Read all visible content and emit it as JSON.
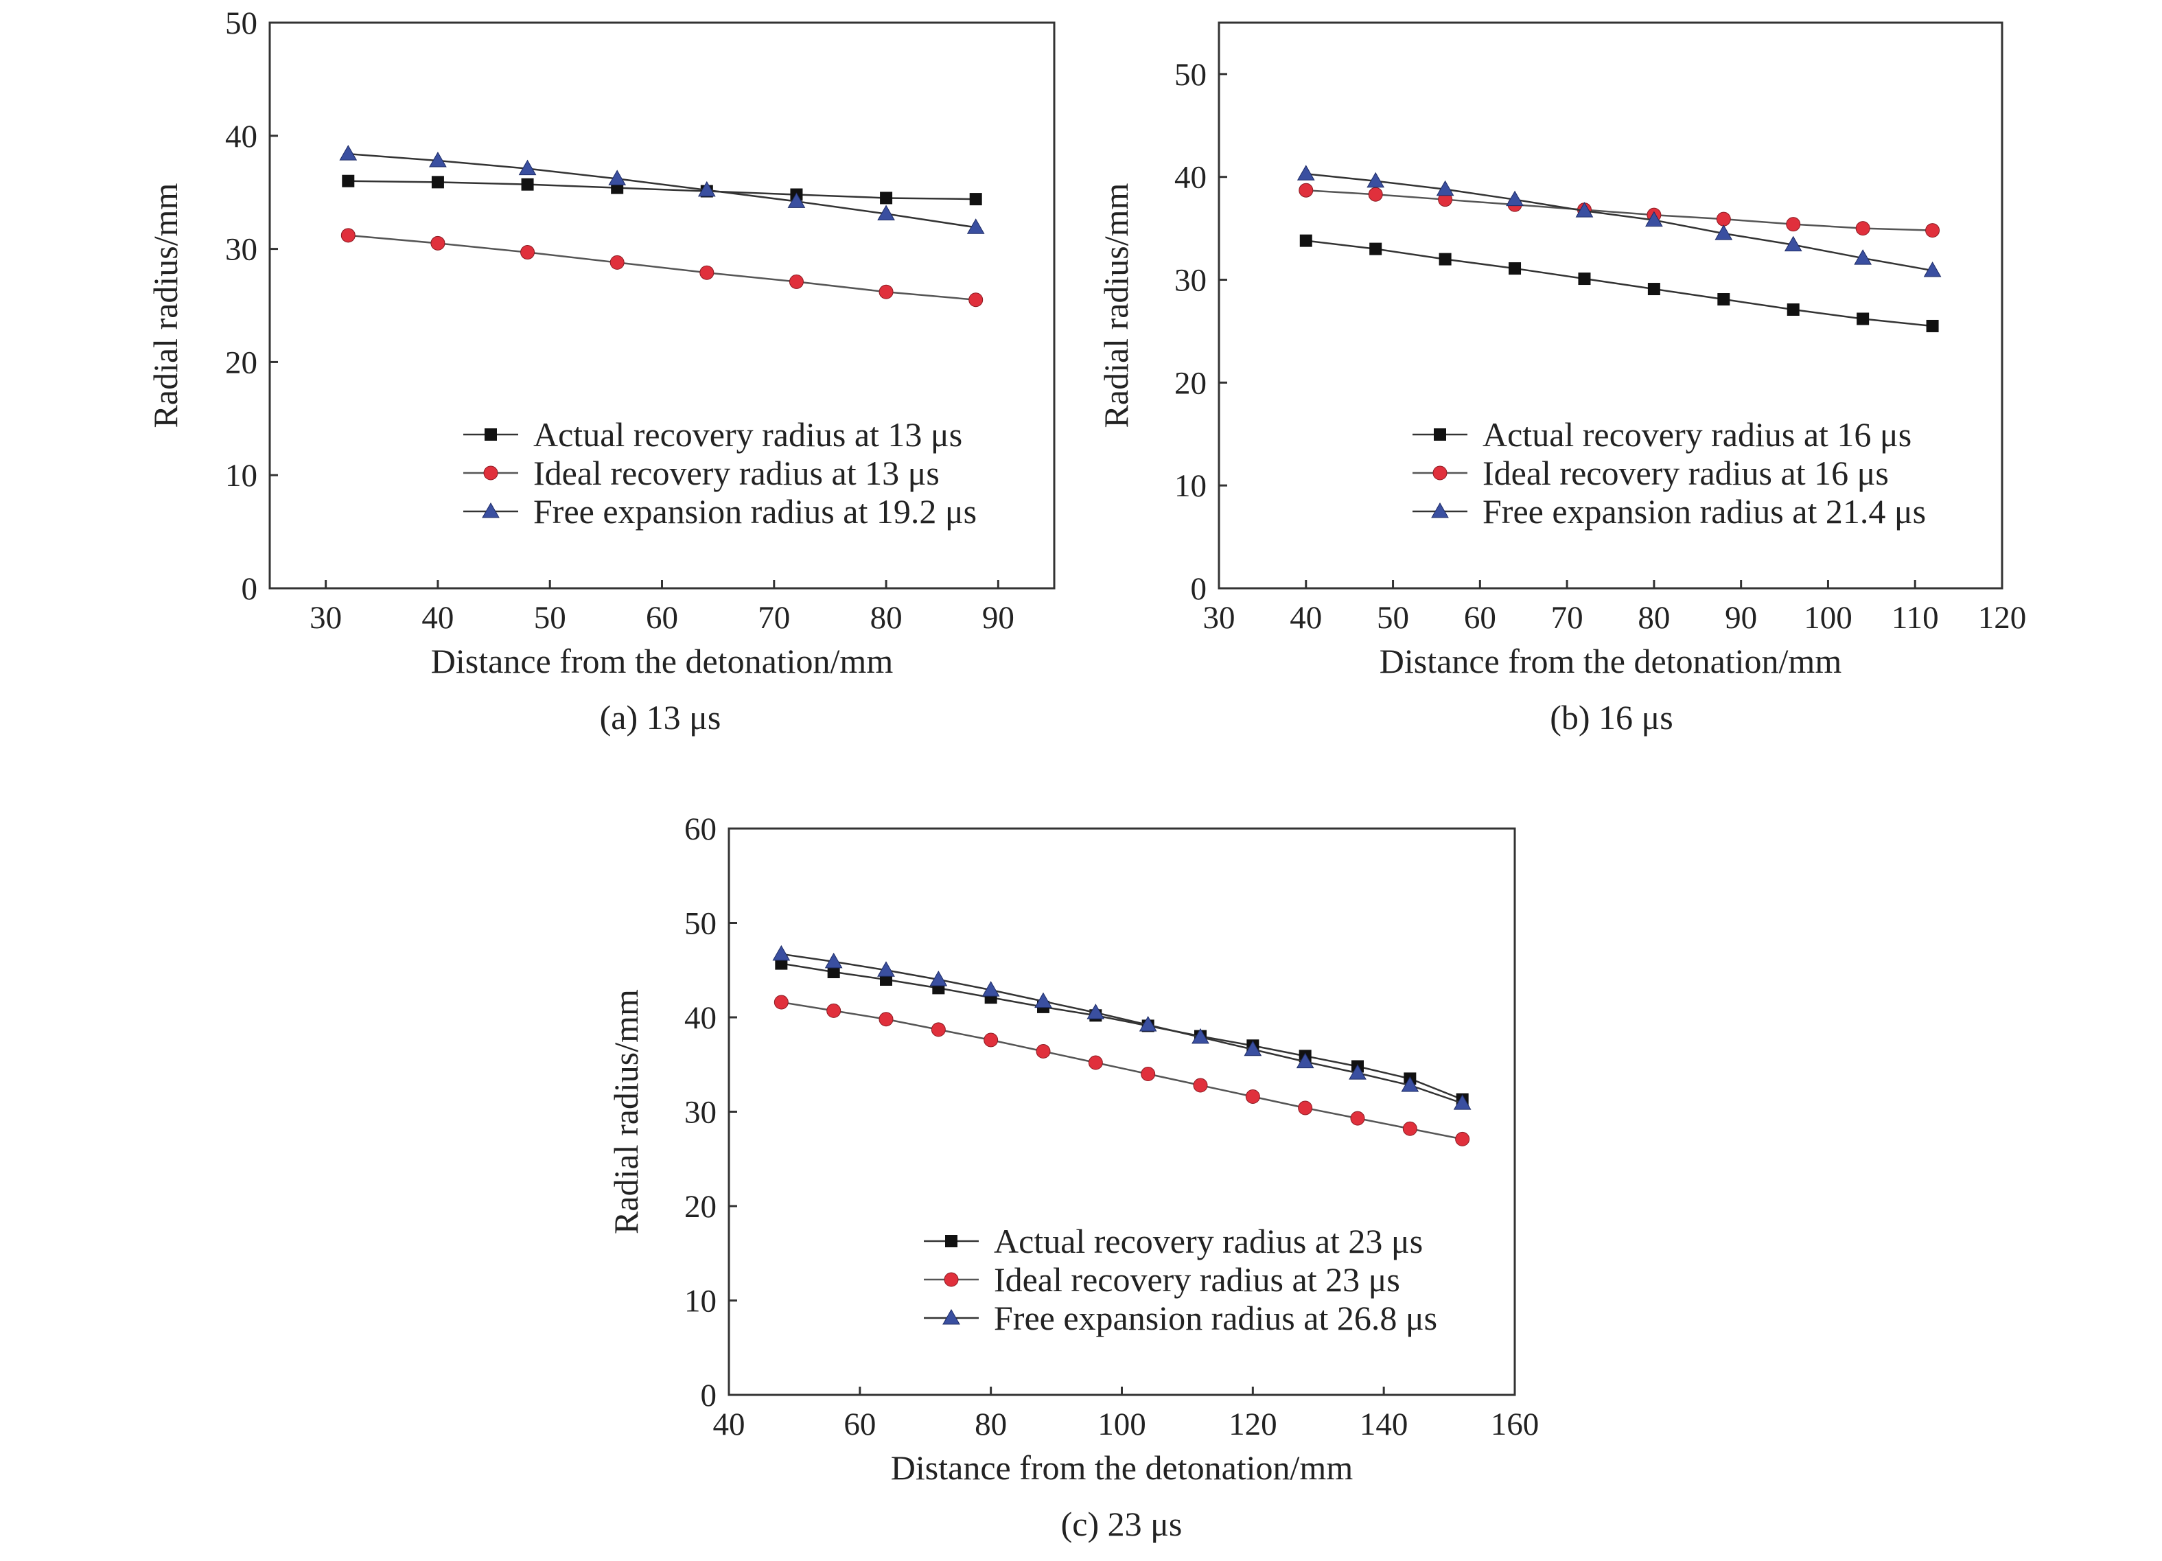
{
  "chart_data": [
    {
      "type": "line",
      "caption": "(a) 13 μs",
      "xlabel": "Distance from the detonation/mm",
      "ylabel": "Radial radius/mm",
      "xlim": [
        25,
        95
      ],
      "ylim": [
        0,
        50
      ],
      "xticks": [
        30,
        40,
        50,
        60,
        70,
        80,
        90
      ],
      "yticks": [
        0,
        10,
        20,
        30,
        40,
        50
      ],
      "legend_position": "bottom-right",
      "grid": false,
      "series": [
        {
          "name": "Actual recovery radius at 13 μs",
          "marker": "square",
          "color": "#111111",
          "line_color": "#333333",
          "x": [
            32,
            40,
            48,
            56,
            64,
            72,
            80,
            88
          ],
          "y": [
            36.0,
            35.9,
            35.7,
            35.4,
            35.1,
            34.8,
            34.5,
            34.4
          ]
        },
        {
          "name": "Ideal recovery radius at 13 μs",
          "marker": "circle",
          "color": "#e0303c",
          "line_color": "#555555",
          "x": [
            32,
            40,
            48,
            56,
            64,
            72,
            80,
            88
          ],
          "y": [
            31.2,
            30.5,
            29.7,
            28.8,
            27.9,
            27.1,
            26.2,
            25.5
          ]
        },
        {
          "name": "Free expansion radius at 19.2 μs",
          "marker": "triangle",
          "color": "#3a4fa0",
          "line_color": "#333333",
          "x": [
            32,
            40,
            48,
            56,
            64,
            72,
            80,
            88
          ],
          "y": [
            38.4,
            37.8,
            37.1,
            36.2,
            35.2,
            34.2,
            33.1,
            31.9
          ]
        }
      ]
    },
    {
      "type": "line",
      "caption": "(b) 16 μs",
      "xlabel": "Distance from the detonation/mm",
      "ylabel": "Radial radius/mm",
      "xlim": [
        30,
        120
      ],
      "ylim": [
        0,
        55
      ],
      "xticks": [
        30,
        40,
        50,
        60,
        70,
        80,
        90,
        100,
        110,
        120
      ],
      "yticks": [
        0,
        10,
        20,
        30,
        40,
        50
      ],
      "legend_position": "bottom-right",
      "grid": false,
      "series": [
        {
          "name": "Actual recovery radius at 16 μs",
          "marker": "square",
          "color": "#111111",
          "line_color": "#333333",
          "x": [
            40,
            48,
            56,
            64,
            72,
            80,
            88,
            96,
            104,
            112
          ],
          "y": [
            33.8,
            33.0,
            32.0,
            31.1,
            30.1,
            29.1,
            28.1,
            27.1,
            26.2,
            25.5
          ]
        },
        {
          "name": "Ideal recovery radius at 16 μs",
          "marker": "circle",
          "color": "#e0303c",
          "line_color": "#555555",
          "x": [
            40,
            48,
            56,
            64,
            72,
            80,
            88,
            96,
            104,
            112
          ],
          "y": [
            38.7,
            38.3,
            37.8,
            37.3,
            36.8,
            36.3,
            35.9,
            35.4,
            35.0,
            34.8
          ]
        },
        {
          "name": "Free expansion radius at 21.4 μs",
          "marker": "triangle",
          "color": "#3a4fa0",
          "line_color": "#333333",
          "x": [
            40,
            48,
            56,
            64,
            72,
            80,
            88,
            96,
            104,
            112
          ],
          "y": [
            40.3,
            39.6,
            38.8,
            37.8,
            36.7,
            35.8,
            34.5,
            33.4,
            32.1,
            30.9
          ]
        }
      ]
    },
    {
      "type": "line",
      "caption": "(c) 23 μs",
      "xlabel": "Distance from the detonation/mm",
      "ylabel": "Radial radius/mm",
      "xlim": [
        40,
        160
      ],
      "ylim": [
        0,
        60
      ],
      "xticks": [
        40,
        60,
        80,
        100,
        120,
        140,
        160
      ],
      "yticks": [
        0,
        10,
        20,
        30,
        40,
        50,
        60
      ],
      "legend_position": "bottom-right",
      "grid": false,
      "series": [
        {
          "name": "Actual recovery radius at 23 μs",
          "marker": "square",
          "color": "#111111",
          "line_color": "#333333",
          "x": [
            48,
            56,
            64,
            72,
            80,
            88,
            96,
            104,
            112,
            120,
            128,
            136,
            144,
            152
          ],
          "y": [
            45.7,
            44.8,
            44.0,
            43.1,
            42.1,
            41.1,
            40.2,
            39.1,
            38.0,
            37.0,
            35.9,
            34.8,
            33.5,
            31.3
          ]
        },
        {
          "name": "Ideal recovery radius at 23 μs",
          "marker": "circle",
          "color": "#e0303c",
          "line_color": "#555555",
          "x": [
            48,
            56,
            64,
            72,
            80,
            88,
            96,
            104,
            112,
            120,
            128,
            136,
            144,
            152
          ],
          "y": [
            41.6,
            40.7,
            39.8,
            38.7,
            37.6,
            36.4,
            35.2,
            34.0,
            32.8,
            31.6,
            30.4,
            29.3,
            28.2,
            27.1
          ]
        },
        {
          "name": "Free expansion radius at 26.8 μs",
          "marker": "triangle",
          "color": "#3a4fa0",
          "line_color": "#333333",
          "x": [
            48,
            56,
            64,
            72,
            80,
            88,
            96,
            104,
            112,
            120,
            128,
            136,
            144,
            152
          ],
          "y": [
            46.7,
            45.9,
            45.0,
            44.0,
            42.9,
            41.7,
            40.5,
            39.2,
            37.9,
            36.6,
            35.3,
            34.1,
            32.8,
            30.9
          ]
        }
      ]
    }
  ]
}
